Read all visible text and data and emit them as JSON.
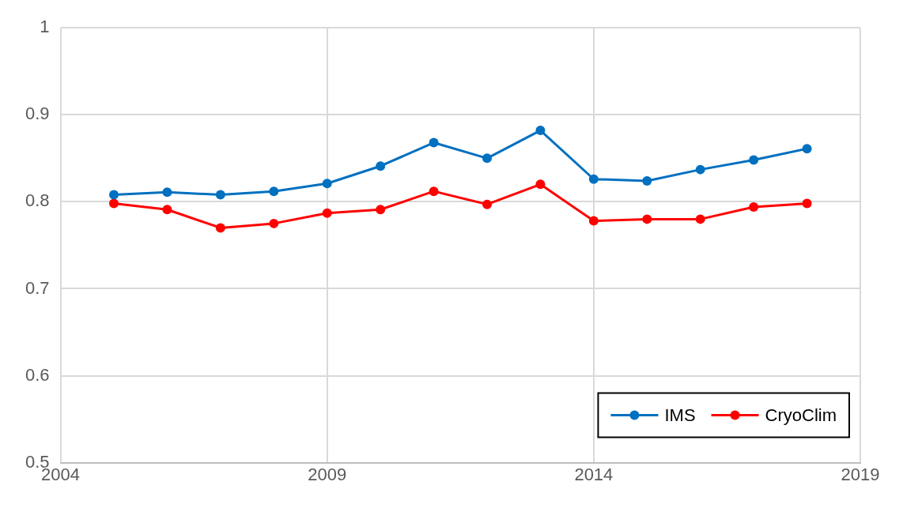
{
  "chart_data": {
    "type": "line",
    "x": [
      2005,
      2006,
      2007,
      2008,
      2009,
      2010,
      2011,
      2012,
      2013,
      2014,
      2015,
      2016,
      2017,
      2018
    ],
    "series": [
      {
        "name": "IMS",
        "color": "#0070c0",
        "values": [
          0.808,
          0.811,
          0.808,
          0.812,
          0.821,
          0.841,
          0.868,
          0.85,
          0.882,
          0.826,
          0.824,
          0.837,
          0.848,
          0.861
        ]
      },
      {
        "name": "CryoClim",
        "color": "#ff0000",
        "values": [
          0.798,
          0.791,
          0.77,
          0.775,
          0.787,
          0.791,
          0.812,
          0.797,
          0.82,
          0.778,
          0.78,
          0.78,
          0.794,
          0.798
        ]
      }
    ],
    "xlim": [
      2004,
      2019
    ],
    "xticks": [
      2004,
      2009,
      2014,
      2019
    ],
    "ylim": [
      0.5,
      1
    ],
    "yticks": [
      0.5,
      0.6,
      0.7,
      0.8,
      0.9,
      1
    ],
    "grid": true,
    "legend": "bottom right",
    "marker": "circle",
    "line_style": "solid"
  }
}
